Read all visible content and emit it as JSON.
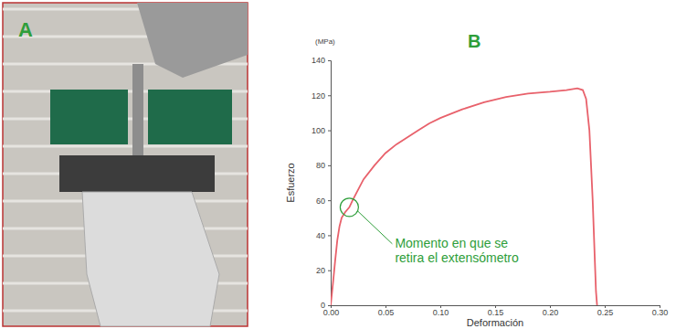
{
  "photo": {
    "label": "A"
  },
  "chart_data": {
    "type": "line",
    "label": "B",
    "ylabel": "Esfuerzo",
    "y_unit": "(MPa)",
    "xlabel": "Deformación",
    "xlim": [
      0,
      0.3
    ],
    "ylim": [
      0,
      140
    ],
    "xticks": [
      {
        "value": 0,
        "label": "0.00"
      },
      {
        "value": 0.05,
        "label": "0.05"
      },
      {
        "value": 0.1,
        "label": "0.10"
      },
      {
        "value": 0.15,
        "label": "0.15"
      },
      {
        "value": 0.2,
        "label": "0.20"
      },
      {
        "value": 0.25,
        "label": "0.25"
      },
      {
        "value": 0.3,
        "label": "0.30"
      }
    ],
    "yticks": [
      0,
      20,
      40,
      60,
      80,
      100,
      120,
      140
    ],
    "grid": false,
    "series": [
      {
        "color": "#e8616b",
        "x": [
          0,
          0.002,
          0.004,
          0.006,
          0.008,
          0.01,
          0.013,
          0.017,
          0.02,
          0.025,
          0.03,
          0.04,
          0.05,
          0.06,
          0.07,
          0.08,
          0.09,
          0.1,
          0.12,
          0.14,
          0.16,
          0.18,
          0.2,
          0.215,
          0.225,
          0.23,
          0.233,
          0.236,
          0.239,
          0.241,
          0.242,
          0.243
        ],
        "values": [
          0,
          12,
          25,
          37,
          45,
          50,
          53,
          56,
          60,
          66,
          72,
          80,
          87,
          92,
          96,
          100,
          104,
          107,
          112,
          116,
          119,
          121,
          122,
          123,
          124,
          123,
          118,
          100,
          60,
          25,
          8,
          0
        ]
      }
    ],
    "annotations": [
      {
        "lines": [
          "Momento en que se",
          "retira el extensómetro"
        ],
        "x": 0.017,
        "y": 56,
        "color": "#2e9e3a"
      }
    ]
  }
}
